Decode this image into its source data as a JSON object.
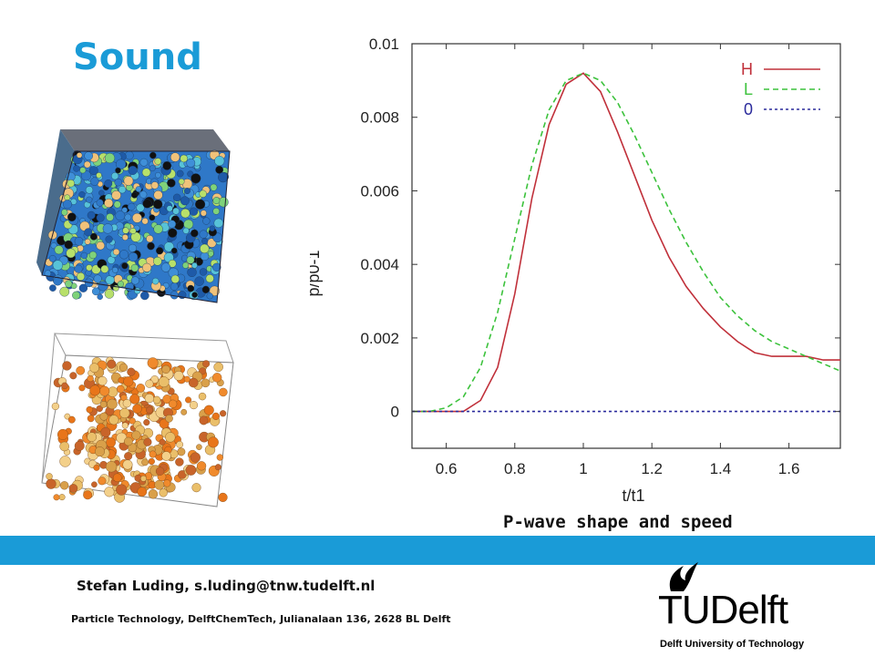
{
  "slide": {
    "title": "Sound",
    "caption": "P-wave shape and speed",
    "author": "Stefan Luding, s.luding@tnw.tudelft.nl",
    "address": "Particle Technology, DelftChemTech, Julianalaan 136, 2628 BL Delft",
    "accent_color": "#1a9bd7"
  },
  "logo": {
    "brand": "TUDelft",
    "subtitle": "Delft University of Technology"
  },
  "chart_data": {
    "type": "line",
    "title": "",
    "xlabel": "t/t1",
    "ylabel": "p/p0-1",
    "xlim": [
      0.5,
      1.75
    ],
    "ylim": [
      -0.001,
      0.01
    ],
    "xticks": [
      "0.6",
      "0.8",
      "1",
      "1.2",
      "1.4",
      "1.6"
    ],
    "yticks": [
      "0",
      "0.002",
      "0.004",
      "0.006",
      "0.008",
      "0.01"
    ],
    "legend_position": "top-right",
    "series": [
      {
        "name": "H",
        "color": "#c0303a",
        "dash": "solid",
        "x": [
          0.5,
          0.6,
          0.65,
          0.7,
          0.75,
          0.8,
          0.85,
          0.9,
          0.95,
          1.0,
          1.05,
          1.1,
          1.15,
          1.2,
          1.25,
          1.3,
          1.35,
          1.4,
          1.45,
          1.5,
          1.55,
          1.6,
          1.65,
          1.7,
          1.75
        ],
        "y": [
          0.0,
          0.0,
          0.0,
          0.0003,
          0.0012,
          0.0032,
          0.0058,
          0.0078,
          0.0089,
          0.0092,
          0.0087,
          0.0076,
          0.0064,
          0.0052,
          0.0042,
          0.0034,
          0.0028,
          0.0023,
          0.0019,
          0.0016,
          0.0015,
          0.0015,
          0.0015,
          0.0014,
          0.0014
        ]
      },
      {
        "name": "L",
        "color": "#3cc23c",
        "dash": "dashed",
        "x": [
          0.5,
          0.55,
          0.6,
          0.65,
          0.7,
          0.75,
          0.8,
          0.85,
          0.9,
          0.95,
          1.0,
          1.05,
          1.1,
          1.15,
          1.2,
          1.25,
          1.3,
          1.35,
          1.4,
          1.45,
          1.5,
          1.55,
          1.6,
          1.65,
          1.7,
          1.75
        ],
        "y": [
          0.0,
          0.0,
          0.0001,
          0.0004,
          0.0012,
          0.0027,
          0.0047,
          0.0067,
          0.0082,
          0.009,
          0.0092,
          0.009,
          0.0084,
          0.0075,
          0.0065,
          0.0055,
          0.0046,
          0.0038,
          0.0031,
          0.0026,
          0.0022,
          0.0019,
          0.0017,
          0.0015,
          0.0013,
          0.0011
        ]
      },
      {
        "name": "0",
        "color": "#2b2b9c",
        "dash": "dotted",
        "x": [
          0.5,
          1.75
        ],
        "y": [
          0.0,
          0.0
        ]
      }
    ]
  }
}
